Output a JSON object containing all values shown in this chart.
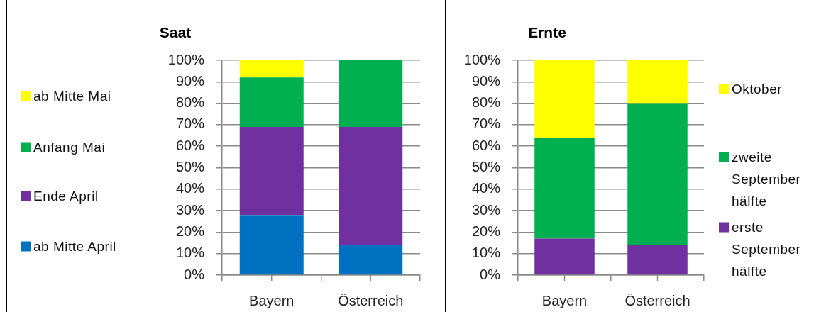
{
  "chart_data": [
    {
      "type": "bar",
      "title": "Saat",
      "categories": [
        "Bayern",
        "Österreich"
      ],
      "stacked": true,
      "series": [
        {
          "name": "ab Mitte April",
          "color": "#0070c0",
          "values": [
            28,
            14
          ]
        },
        {
          "name": "Ende April",
          "color": "#7030a0",
          "values": [
            41,
            55
          ]
        },
        {
          "name": "Anfang Mai",
          "color": "#00b050",
          "values": [
            23,
            31
          ]
        },
        {
          "name": "ab Mitte Mai",
          "color": "#ffff00",
          "values": [
            8,
            0
          ]
        }
      ],
      "ylim": [
        0,
        100
      ],
      "yticks": [
        {
          "value": 0,
          "label": "0%"
        },
        {
          "value": 10,
          "label": "10%"
        },
        {
          "value": 20,
          "label": "20%"
        },
        {
          "value": 30,
          "label": "30%"
        },
        {
          "value": 40,
          "label": "40%"
        },
        {
          "value": 50,
          "label": "50%"
        },
        {
          "value": 60,
          "label": "60%"
        },
        {
          "value": 70,
          "label": "70%"
        },
        {
          "value": 80,
          "label": "80%"
        },
        {
          "value": 90,
          "label": "90%"
        },
        {
          "value": 100,
          "label": "100%"
        }
      ],
      "grid": "y",
      "legend": "left"
    },
    {
      "type": "bar",
      "title": "Ernte",
      "categories": [
        "Bayern",
        "Österreich"
      ],
      "stacked": true,
      "series": [
        {
          "name": "erste September hälfte",
          "color": "#7030a0",
          "values": [
            17,
            14
          ]
        },
        {
          "name": "zweite September hälfte",
          "color": "#00b050",
          "values": [
            47,
            66
          ]
        },
        {
          "name": "Oktober",
          "color": "#ffff00",
          "values": [
            36,
            20
          ]
        }
      ],
      "ylim": [
        0,
        100
      ],
      "yticks": [
        {
          "value": 0,
          "label": "0%"
        },
        {
          "value": 10,
          "label": "10%"
        },
        {
          "value": 20,
          "label": "20%"
        },
        {
          "value": 30,
          "label": "30%"
        },
        {
          "value": 40,
          "label": "40%"
        },
        {
          "value": 50,
          "label": "50%"
        },
        {
          "value": 60,
          "label": "60%"
        },
        {
          "value": 70,
          "label": "70%"
        },
        {
          "value": 80,
          "label": "80%"
        },
        {
          "value": 90,
          "label": "90%"
        },
        {
          "value": 100,
          "label": "100%"
        }
      ],
      "grid": "y",
      "legend": "right"
    }
  ]
}
